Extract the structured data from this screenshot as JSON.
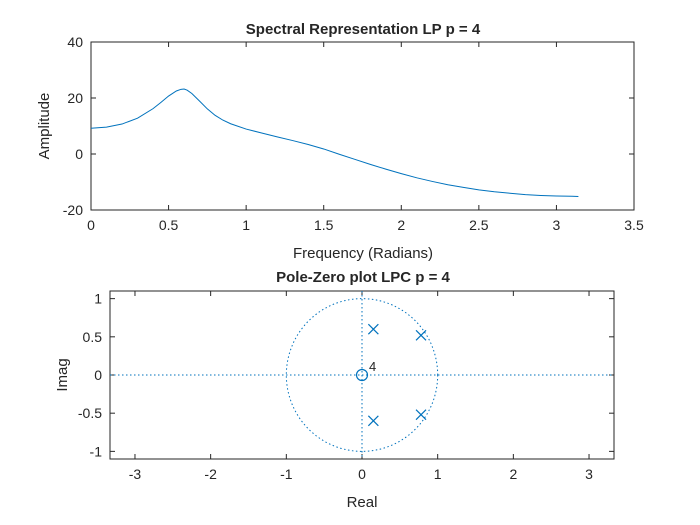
{
  "chart_data": [
    {
      "type": "line",
      "title": "Spectral Representation LP p = 4",
      "xlabel": "Frequency (Radians)",
      "ylabel": "Amplitude",
      "xlim": [
        0,
        3.5
      ],
      "ylim": [
        -20,
        40
      ],
      "xticks": [
        0,
        0.5,
        1,
        1.5,
        2,
        2.5,
        3,
        3.5
      ],
      "yticks": [
        -20,
        0,
        20,
        40
      ],
      "xtick_labels": [
        "0",
        "0.5",
        "1",
        "1.5",
        "2",
        "2.5",
        "3",
        "3.5"
      ],
      "ytick_labels": [
        "-20",
        "0",
        "20",
        "40"
      ],
      "grid": false,
      "series": [
        {
          "color": "#0072bd",
          "x": [
            0,
            0.1,
            0.2,
            0.3,
            0.4,
            0.45,
            0.5,
            0.55,
            0.58,
            0.6,
            0.62,
            0.65,
            0.7,
            0.75,
            0.8,
            0.85,
            0.9,
            1.0,
            1.1,
            1.2,
            1.3,
            1.4,
            1.5,
            1.6,
            1.7,
            1.8,
            1.9,
            2.0,
            2.1,
            2.2,
            2.3,
            2.4,
            2.5,
            2.6,
            2.7,
            2.8,
            2.9,
            3.0,
            3.1,
            3.1416
          ],
          "values": [
            9.2,
            9.6,
            10.7,
            12.8,
            16.2,
            18.4,
            20.7,
            22.5,
            23.1,
            23.2,
            22.8,
            21.6,
            18.9,
            16.1,
            13.8,
            12.1,
            10.8,
            8.9,
            7.5,
            6.1,
            4.8,
            3.4,
            1.8,
            -0.1,
            -1.9,
            -3.7,
            -5.4,
            -7.0,
            -8.5,
            -9.8,
            -11.0,
            -11.9,
            -12.8,
            -13.5,
            -14.0,
            -14.5,
            -14.8,
            -15.0,
            -15.1,
            -15.2
          ]
        }
      ]
    },
    {
      "type": "scatter",
      "title": "Pole-Zero plot  LPC p = 4",
      "xlabel": "Real",
      "ylabel": "Imag",
      "xlim": [
        -3.33,
        3.33
      ],
      "ylim": [
        -1.1,
        1.1
      ],
      "xticks": [
        -3,
        -2,
        -1,
        0,
        1,
        2,
        3
      ],
      "yticks": [
        -1,
        -0.5,
        0,
        0.5,
        1
      ],
      "xtick_labels": [
        "-3",
        "-2",
        "-1",
        "0",
        "1",
        "2",
        "3"
      ],
      "ytick_labels": [
        "-1",
        "-0.5",
        "0",
        "0.5",
        "1"
      ],
      "grid": false,
      "unit_circle": true,
      "color": "#0072bd",
      "poles": [
        {
          "x": 0.15,
          "y": 0.6
        },
        {
          "x": 0.15,
          "y": -0.6
        },
        {
          "x": 0.78,
          "y": 0.52
        },
        {
          "x": 0.78,
          "y": -0.52
        }
      ],
      "zeros": [
        {
          "x": 0,
          "y": 0
        }
      ],
      "zero_multiplicity_label": "4"
    }
  ]
}
